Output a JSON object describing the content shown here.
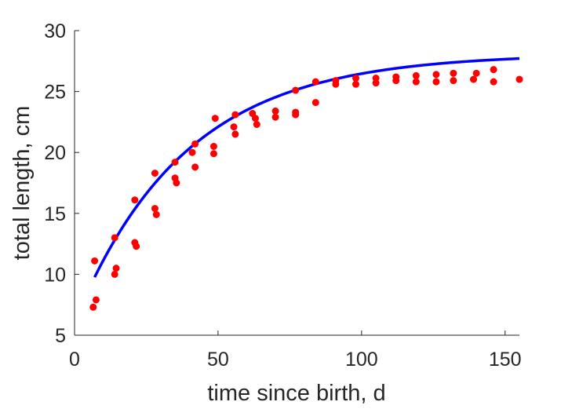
{
  "chart_data": {
    "type": "scatter",
    "title": "",
    "xlabel": "time since birth, d",
    "ylabel": "total length, cm",
    "xlim": [
      0,
      155
    ],
    "ylim": [
      5,
      30
    ],
    "xticks": [
      0,
      50,
      100,
      150
    ],
    "yticks": [
      5,
      10,
      15,
      20,
      25,
      30
    ],
    "grid": false,
    "legend": "none",
    "series": [
      {
        "type": "scatter",
        "color": "#ff0000",
        "points": [
          [
            6.5,
            7.3
          ],
          [
            7,
            11.1
          ],
          [
            7.5,
            7.9
          ],
          [
            14,
            13.0
          ],
          [
            14,
            10.0
          ],
          [
            14.5,
            10.5
          ],
          [
            21,
            16.1
          ],
          [
            21,
            12.6
          ],
          [
            21.5,
            12.3
          ],
          [
            28,
            18.3
          ],
          [
            28,
            15.4
          ],
          [
            28.5,
            14.9
          ],
          [
            35,
            19.2
          ],
          [
            35,
            17.9
          ],
          [
            35.5,
            17.5
          ],
          [
            41,
            20.0
          ],
          [
            42,
            20.7
          ],
          [
            42,
            18.8
          ],
          [
            49,
            22.8
          ],
          [
            48.5,
            20.5
          ],
          [
            48.5,
            19.9
          ],
          [
            56,
            23.1
          ],
          [
            55.5,
            22.1
          ],
          [
            56,
            21.5
          ],
          [
            62,
            23.2
          ],
          [
            63,
            22.8
          ],
          [
            63.5,
            22.3
          ],
          [
            70,
            23.4
          ],
          [
            70,
            22.9
          ],
          [
            77,
            25.1
          ],
          [
            77,
            23.3
          ],
          [
            77,
            23.1
          ],
          [
            84,
            25.8
          ],
          [
            84,
            24.1
          ],
          [
            91,
            25.9
          ],
          [
            91,
            25.6
          ],
          [
            98,
            26.1
          ],
          [
            98,
            25.6
          ],
          [
            105,
            26.1
          ],
          [
            105,
            25.7
          ],
          [
            112,
            26.2
          ],
          [
            112,
            25.9
          ],
          [
            119,
            26.3
          ],
          [
            119,
            25.8
          ],
          [
            126,
            26.4
          ],
          [
            126,
            25.8
          ],
          [
            132,
            26.5
          ],
          [
            132,
            25.9
          ],
          [
            139,
            26.0
          ],
          [
            140,
            26.5
          ],
          [
            146,
            26.8
          ],
          [
            146,
            25.8
          ],
          [
            155,
            26.0
          ]
        ]
      },
      {
        "type": "line",
        "color": "#0000ff",
        "model": {
          "linf": 28.1,
          "l0": 6.1,
          "k": 0.026
        },
        "x_range": [
          7,
          155
        ]
      }
    ]
  }
}
